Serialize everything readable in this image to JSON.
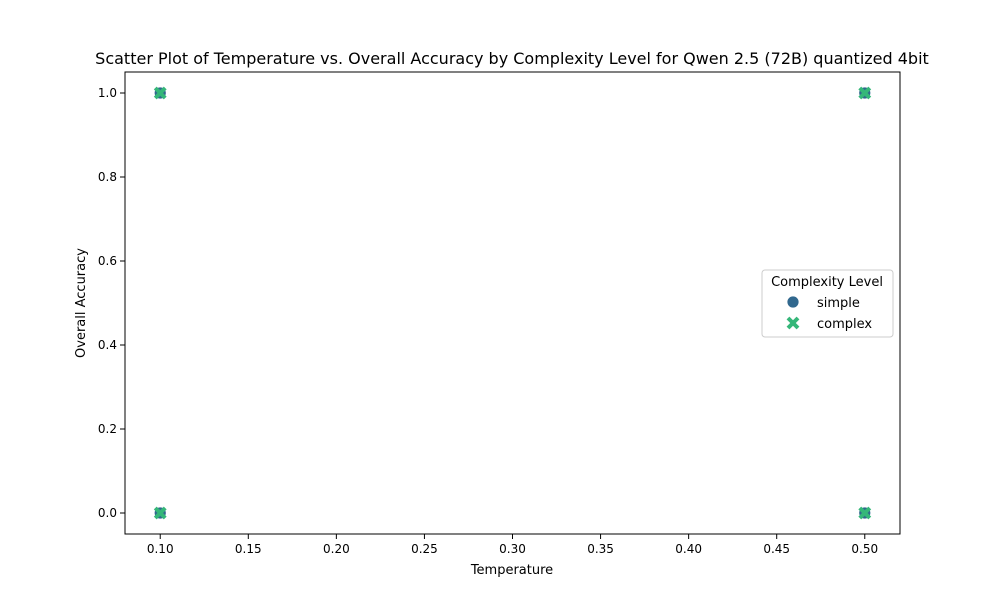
{
  "chart_data": {
    "type": "scatter",
    "title": "Scatter Plot of Temperature vs. Overall Accuracy by Complexity Level for Qwen 2.5 (72B) quantized 4bit",
    "xlabel": "Temperature",
    "ylabel": "Overall Accuracy",
    "xlim": [
      0.08,
      0.52
    ],
    "ylim": [
      -0.05,
      1.05
    ],
    "xticks": [
      0.1,
      0.15,
      0.2,
      0.25,
      0.3,
      0.35,
      0.4,
      0.45,
      0.5
    ],
    "xtick_labels": [
      "0.10",
      "0.15",
      "0.20",
      "0.25",
      "0.30",
      "0.35",
      "0.40",
      "0.45",
      "0.50"
    ],
    "yticks": [
      0.0,
      0.2,
      0.4,
      0.6,
      0.8,
      1.0
    ],
    "ytick_labels": [
      "0.0",
      "0.2",
      "0.4",
      "0.6",
      "0.8",
      "1.0"
    ],
    "grid": false,
    "legend": {
      "title": "Complexity Level",
      "placement": "center-right"
    },
    "series": [
      {
        "name": "simple",
        "marker": "circle",
        "color": "#31688e",
        "points": [
          {
            "x": 0.1,
            "y": 1.0
          },
          {
            "x": 0.1,
            "y": 0.0
          },
          {
            "x": 0.5,
            "y": 1.0
          },
          {
            "x": 0.5,
            "y": 0.0
          }
        ]
      },
      {
        "name": "complex",
        "marker": "x",
        "color": "#35b779",
        "points": [
          {
            "x": 0.1,
            "y": 1.0
          },
          {
            "x": 0.1,
            "y": 0.0
          },
          {
            "x": 0.5,
            "y": 1.0
          },
          {
            "x": 0.5,
            "y": 0.0
          }
        ]
      }
    ]
  }
}
